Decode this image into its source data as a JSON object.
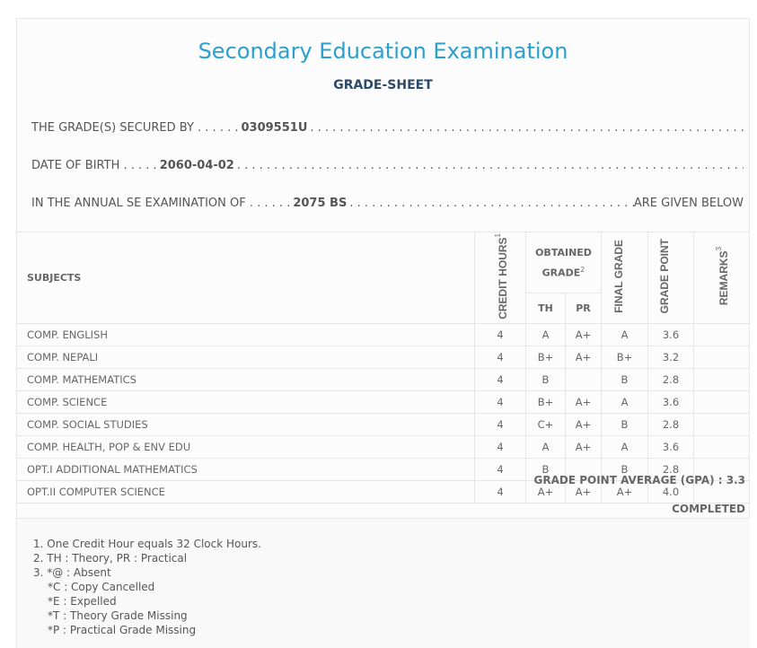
{
  "header": {
    "title": "Secondary Education Examination",
    "subtitle": "GRADE-SHEET"
  },
  "info": {
    "secured_by_label": "THE GRADE(S) SECURED BY",
    "secured_by_value": "0309551U",
    "dob_label": "DATE OF BIRTH",
    "dob_value": "2060-04-02",
    "exam_label": "IN THE ANNUAL SE EXAMINATION OF",
    "exam_value": "2075 BS",
    "exam_suffix": "ARE GIVEN BELOW"
  },
  "table": {
    "headers": {
      "subjects": "SUBJECTS",
      "credit_hours": "CREDIT HOURS",
      "credit_sup": "1",
      "obtained_grade": "OBTAINED GRADE",
      "obtained_sup": "2",
      "th": "TH",
      "pr": "PR",
      "final_grade": "FINAL GRADE",
      "grade_point": "GRADE POINT",
      "remarks": "REMARKS",
      "remarks_sup": "3"
    },
    "rows": [
      {
        "subject": "COMP. ENGLISH",
        "credit": "4",
        "th": "A",
        "pr": "A+",
        "final": "A",
        "gp": "3.6",
        "remarks": ""
      },
      {
        "subject": "COMP. NEPALI",
        "credit": "4",
        "th": "B+",
        "pr": "A+",
        "final": "B+",
        "gp": "3.2",
        "remarks": ""
      },
      {
        "subject": "COMP. MATHEMATICS",
        "credit": "4",
        "th": "B",
        "pr": "",
        "final": "B",
        "gp": "2.8",
        "remarks": ""
      },
      {
        "subject": "COMP. SCIENCE",
        "credit": "4",
        "th": "B+",
        "pr": "A+",
        "final": "A",
        "gp": "3.6",
        "remarks": ""
      },
      {
        "subject": "COMP. SOCIAL STUDIES",
        "credit": "4",
        "th": "C+",
        "pr": "A+",
        "final": "B",
        "gp": "2.8",
        "remarks": ""
      },
      {
        "subject": "COMP. HEALTH, POP & ENV EDU",
        "credit": "4",
        "th": "A",
        "pr": "A+",
        "final": "A",
        "gp": "3.6",
        "remarks": ""
      },
      {
        "subject": "OPT.I ADDITIONAL MATHEMATICS",
        "credit": "4",
        "th": "B",
        "pr": "",
        "final": "B",
        "gp": "2.8",
        "remarks": ""
      },
      {
        "subject": "OPT.II COMPUTER SCIENCE",
        "credit": "4",
        "th": "A+",
        "pr": "A+",
        "final": "A+",
        "gp": "4.0",
        "remarks": ""
      }
    ]
  },
  "gpa": "GRADE POINT AVERAGE (GPA) : 3.3",
  "status": "COMPLETED",
  "notes": [
    "1. One Credit Hour equals 32 Clock Hours.",
    "2. TH : Theory, PR : Practical",
    "3. *@ : Absent",
    "*C : Copy Cancelled",
    "*E : Expelled",
    "*T : Theory Grade Missing",
    "*P : Practical Grade Missing"
  ]
}
